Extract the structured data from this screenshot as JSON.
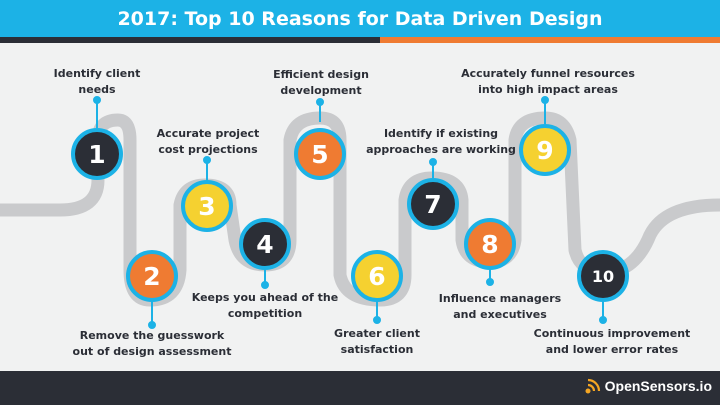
{
  "header": {
    "title": "2017: Top 10 Reasons for Data Driven Design"
  },
  "brand": {
    "name": "OpenSensors.io"
  },
  "colors": {
    "accent": "#1cb2e6",
    "dark": "#2b2e36",
    "orange": "#ef7b32",
    "yellow": "#f5d130",
    "road": "#c9cacc"
  },
  "reasons": [
    {
      "number": "1",
      "line1": "Identify client",
      "line2": "needs"
    },
    {
      "number": "2",
      "line1": "Remove the guesswork",
      "line2": "out of design assessment"
    },
    {
      "number": "3",
      "line1": "Accurate project",
      "line2": "cost projections"
    },
    {
      "number": "4",
      "line1": "Keeps you ahead of the",
      "line2": "competition"
    },
    {
      "number": "5",
      "line1": "Efficient design",
      "line2": "development"
    },
    {
      "number": "6",
      "line1": "Greater client",
      "line2": "satisfaction"
    },
    {
      "number": "7",
      "line1": "Identify if existing",
      "line2": "approaches are working"
    },
    {
      "number": "8",
      "line1": "Influence managers",
      "line2": "and executives"
    },
    {
      "number": "9",
      "line1": "Accurately funnel resources",
      "line2": "into high impact areas"
    },
    {
      "number": "10",
      "line1": "Continuous improvement",
      "line2": "and lower error rates"
    }
  ]
}
